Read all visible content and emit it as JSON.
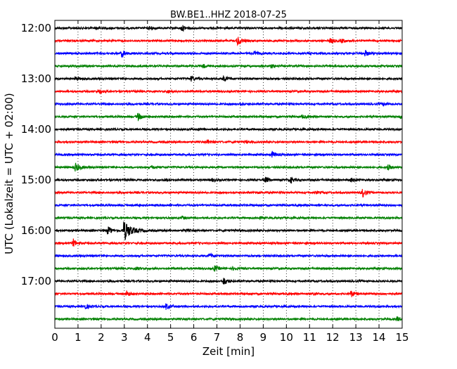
{
  "chart_data": {
    "type": "line",
    "title": "BW.BE1..HHZ 2018-07-25",
    "xlabel": "Zeit  [min]",
    "ylabel": "UTC (Lokalzeit = UTC + 02:00)",
    "xlim": [
      0,
      15
    ],
    "x_ticks": [
      "0",
      "1",
      "2",
      "3",
      "4",
      "5",
      "6",
      "7",
      "8",
      "9",
      "10",
      "11",
      "12",
      "13",
      "14",
      "15"
    ],
    "y_tick_labels": [
      "12:00",
      "13:00",
      "14:00",
      "15:00",
      "16:00",
      "17:00"
    ],
    "grid": "vertical dotted at each minute",
    "trace_interval_minutes": 15,
    "colors": [
      "#000000",
      "#ff0000",
      "#0000ff",
      "#008000"
    ],
    "traces": [
      {
        "start": "12:00",
        "color": "#000000",
        "events": [
          [
            1.8,
            0.25
          ],
          [
            4.1,
            0.35
          ],
          [
            5.5,
            0.55
          ],
          [
            9.7,
            0.15
          ]
        ]
      },
      {
        "start": "12:15",
        "color": "#ff0000",
        "events": [
          [
            7.9,
            1.0
          ],
          [
            11.9,
            0.45
          ],
          [
            12.4,
            0.35
          ]
        ]
      },
      {
        "start": "12:30",
        "color": "#0000ff",
        "events": [
          [
            2.9,
            0.7
          ],
          [
            8.6,
            0.35
          ],
          [
            13.4,
            0.55
          ]
        ]
      },
      {
        "start": "12:45",
        "color": "#008000",
        "events": [
          [
            6.4,
            0.35
          ],
          [
            9.3,
            0.35
          ]
        ]
      },
      {
        "start": "13:00",
        "color": "#000000",
        "events": [
          [
            0.9,
            0.35
          ],
          [
            5.9,
            0.45
          ],
          [
            7.3,
            0.55
          ]
        ]
      },
      {
        "start": "13:15",
        "color": "#ff0000",
        "events": [
          [
            1.9,
            0.35
          ],
          [
            4.9,
            0.25
          ]
        ]
      },
      {
        "start": "13:30",
        "color": "#0000ff",
        "events": [
          [
            8.0,
            0.25
          ],
          [
            14.2,
            0.3
          ]
        ]
      },
      {
        "start": "13:45",
        "color": "#008000",
        "events": [
          [
            3.6,
            0.75
          ],
          [
            10.7,
            0.3
          ],
          [
            14.9,
            0.3
          ]
        ]
      },
      {
        "start": "14:00",
        "color": "#000000",
        "events": [
          [
            6.2,
            0.15
          ]
        ]
      },
      {
        "start": "14:15",
        "color": "#ff0000",
        "events": [
          [
            6.6,
            0.4
          ],
          [
            8.3,
            0.2
          ]
        ]
      },
      {
        "start": "14:30",
        "color": "#0000ff",
        "events": [
          [
            9.4,
            0.6
          ]
        ]
      },
      {
        "start": "14:45",
        "color": "#008000",
        "events": [
          [
            0.9,
            0.85
          ],
          [
            4.2,
            0.3
          ],
          [
            14.4,
            0.45
          ]
        ]
      },
      {
        "start": "15:00",
        "color": "#000000",
        "events": [
          [
            4.8,
            0.25
          ],
          [
            6.8,
            0.3
          ],
          [
            9.1,
            0.5
          ],
          [
            10.2,
            0.5
          ],
          [
            12.8,
            0.4
          ]
        ]
      },
      {
        "start": "15:15",
        "color": "#ff0000",
        "events": [
          [
            8.7,
            0.2
          ],
          [
            11.3,
            0.2
          ],
          [
            13.3,
            0.9
          ]
        ]
      },
      {
        "start": "15:30",
        "color": "#0000ff",
        "events": [
          [
            3.5,
            0.15
          ]
        ]
      },
      {
        "start": "15:45",
        "color": "#008000",
        "events": [
          [
            5.5,
            0.3
          ],
          [
            8.8,
            0.2
          ]
        ]
      },
      {
        "start": "16:00",
        "color": "#000000",
        "events": [
          [
            2.3,
            0.8
          ],
          [
            3.0,
            2.0
          ],
          [
            5.6,
            0.3
          ]
        ]
      },
      {
        "start": "16:15",
        "color": "#ff0000",
        "events": [
          [
            0.8,
            0.75
          ]
        ]
      },
      {
        "start": "16:30",
        "color": "#0000ff",
        "events": [
          [
            6.7,
            0.4
          ]
        ]
      },
      {
        "start": "16:45",
        "color": "#008000",
        "events": [
          [
            3.5,
            0.3
          ],
          [
            6.9,
            0.5
          ],
          [
            7.7,
            0.25
          ]
        ]
      },
      {
        "start": "17:00",
        "color": "#000000",
        "events": [
          [
            7.3,
            0.75
          ]
        ]
      },
      {
        "start": "17:15",
        "color": "#ff0000",
        "events": [
          [
            3.1,
            0.55
          ],
          [
            11.2,
            0.25
          ],
          [
            12.8,
            0.6
          ]
        ]
      },
      {
        "start": "17:30",
        "color": "#0000ff",
        "events": [
          [
            1.3,
            0.5
          ],
          [
            4.8,
            0.55
          ]
        ]
      },
      {
        "start": "17:45",
        "color": "#008000",
        "events": [
          [
            14.8,
            0.35
          ]
        ]
      }
    ]
  }
}
